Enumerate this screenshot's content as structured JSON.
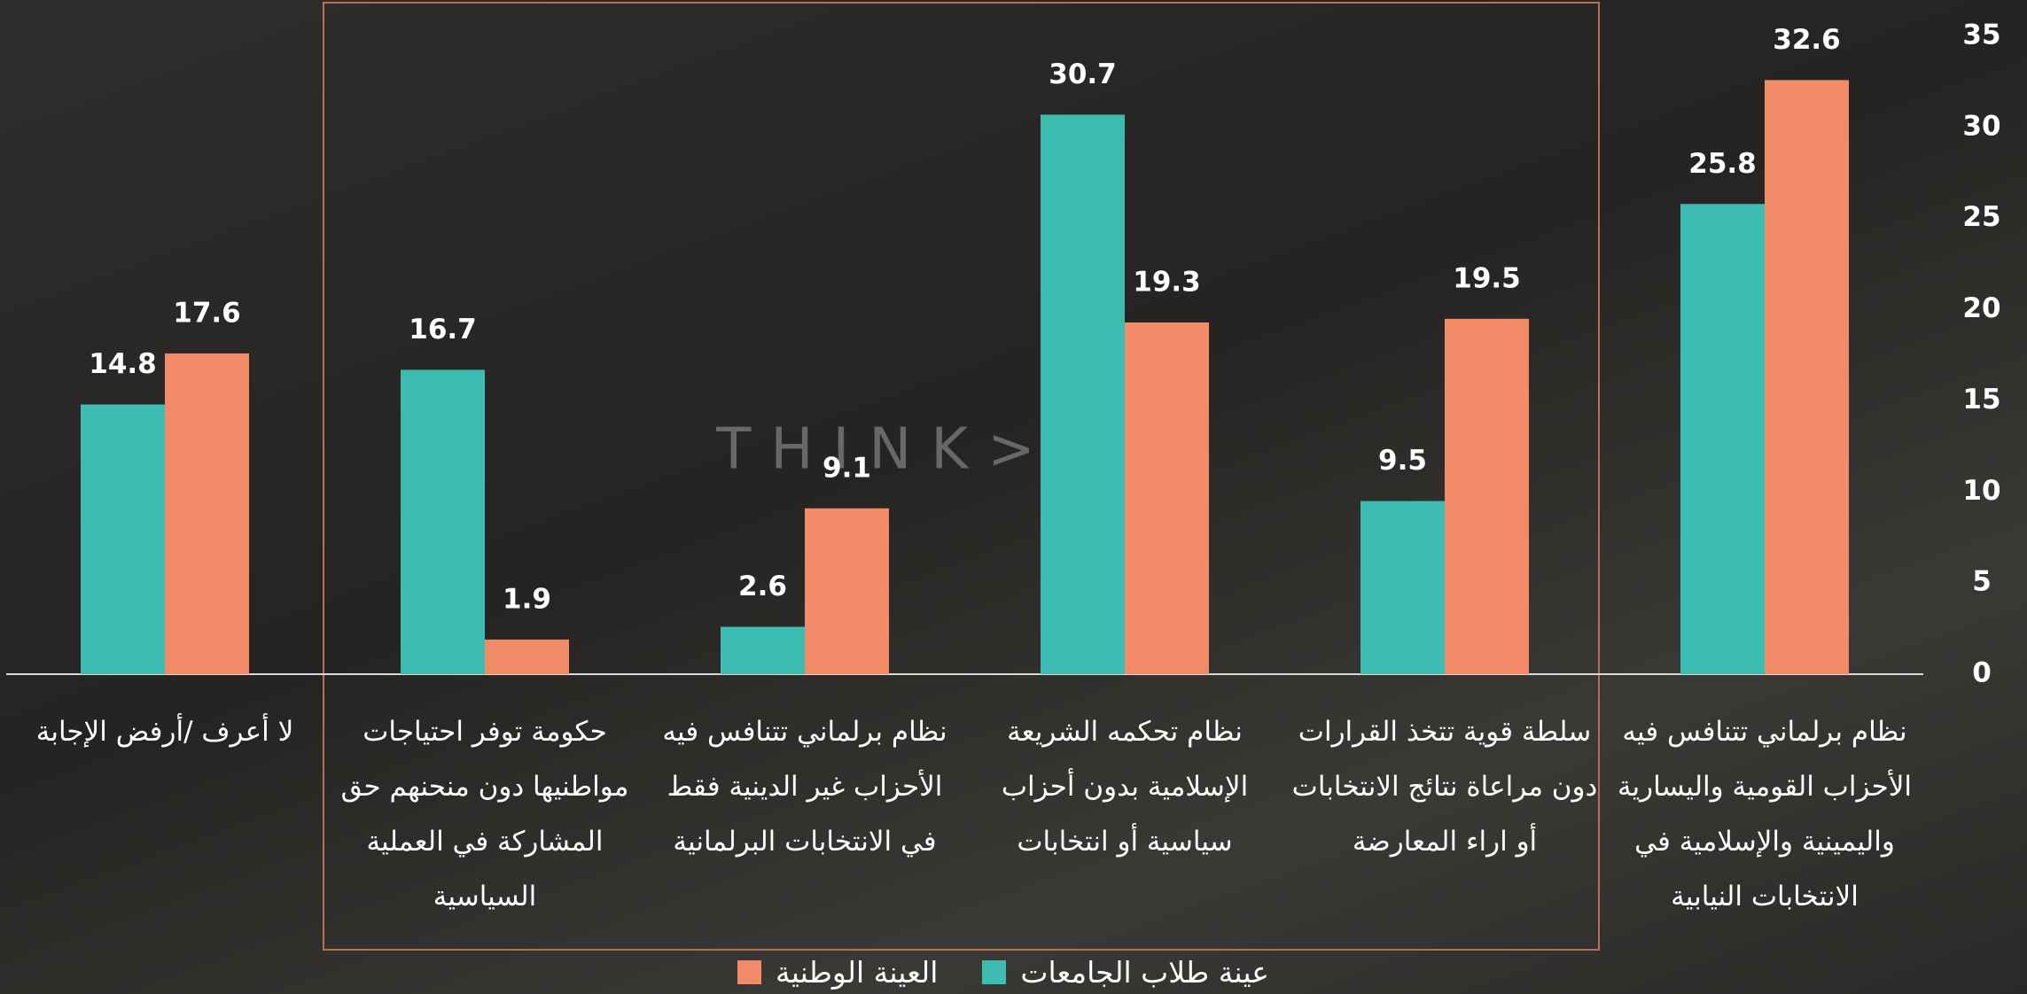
{
  "chart_data": {
    "type": "bar",
    "watermark": "THINK>",
    "categories": [
      "نظام برلماني تتنافس فيه الأحزاب القومية واليسارية واليمينية والإسلامية في الانتخابات النيابية",
      "سلطة قوية تتخذ القرارات دون مراعاة نتائج الانتخابات أو اراء المعارضة",
      "نظام تحكمه الشريعة الإسلامية بدون أحزاب سياسية أو انتخابات",
      "نظام برلماني تتنافس فيه الأحزاب غير الدينية فقط في الانتخابات البرلمانية",
      "حكومة توفر احتياجات مواطنيها دون منحنهم حق المشاركة في العملية السياسية",
      "لا أعرف /أرفض الإجابة"
    ],
    "series": [
      {
        "name": "عينة طلاب الجامعات",
        "color": "#3dbdb1",
        "values": [
          25.8,
          9.5,
          30.7,
          2.6,
          16.7,
          14.8
        ]
      },
      {
        "name": "العينة الوطنية",
        "color": "#f28b68",
        "values": [
          32.6,
          19.5,
          19.3,
          9.1,
          1.9,
          17.6
        ]
      }
    ],
    "ylim": [
      0,
      35
    ],
    "yticks": [
      0,
      5,
      10,
      15,
      20,
      25,
      30,
      35
    ],
    "grid": false
  }
}
